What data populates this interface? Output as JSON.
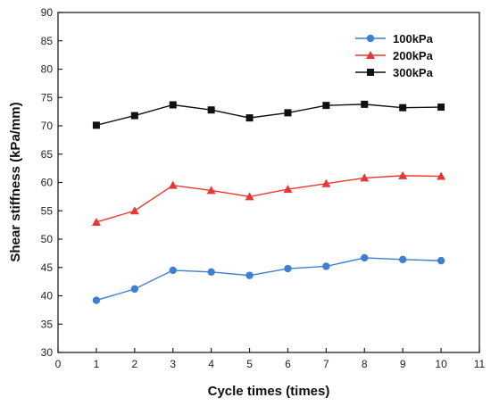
{
  "chart_data": {
    "type": "line",
    "title": "",
    "xlabel": "Cycle times (times)",
    "ylabel": "Shear stiffness (kPa/mm)",
    "xlim": [
      0,
      11
    ],
    "ylim": [
      30,
      90
    ],
    "x_ticks": [
      "0",
      "1",
      "2",
      "3",
      "4",
      "5",
      "6",
      "7",
      "8",
      "9",
      "10",
      "11"
    ],
    "y_ticks": [
      "30",
      "35",
      "40",
      "45",
      "50",
      "55",
      "60",
      "65",
      "70",
      "75",
      "80",
      "85",
      "90"
    ],
    "grid": false,
    "legend_position": "top-right",
    "x": [
      1,
      2,
      3,
      4,
      5,
      6,
      7,
      8,
      9,
      10
    ],
    "series": [
      {
        "name": "100kPa",
        "color": "#3d7fd0",
        "line_color": "#3d7fd0",
        "marker": "circle",
        "values": [
          39.2,
          41.2,
          44.5,
          44.2,
          43.6,
          44.8,
          45.2,
          46.7,
          46.4,
          46.2
        ]
      },
      {
        "name": "200kPa",
        "color": "#e53935",
        "line_color": "#e53935",
        "marker": "triangle",
        "values": [
          53.0,
          55.0,
          59.5,
          58.6,
          57.5,
          58.8,
          59.8,
          60.8,
          61.2,
          61.1
        ]
      },
      {
        "name": "300kPa",
        "color": "#111111",
        "line_color": "#111111",
        "marker": "square",
        "values": [
          70.1,
          71.8,
          73.7,
          72.8,
          71.4,
          72.3,
          73.6,
          73.8,
          73.2,
          73.3
        ]
      }
    ]
  }
}
